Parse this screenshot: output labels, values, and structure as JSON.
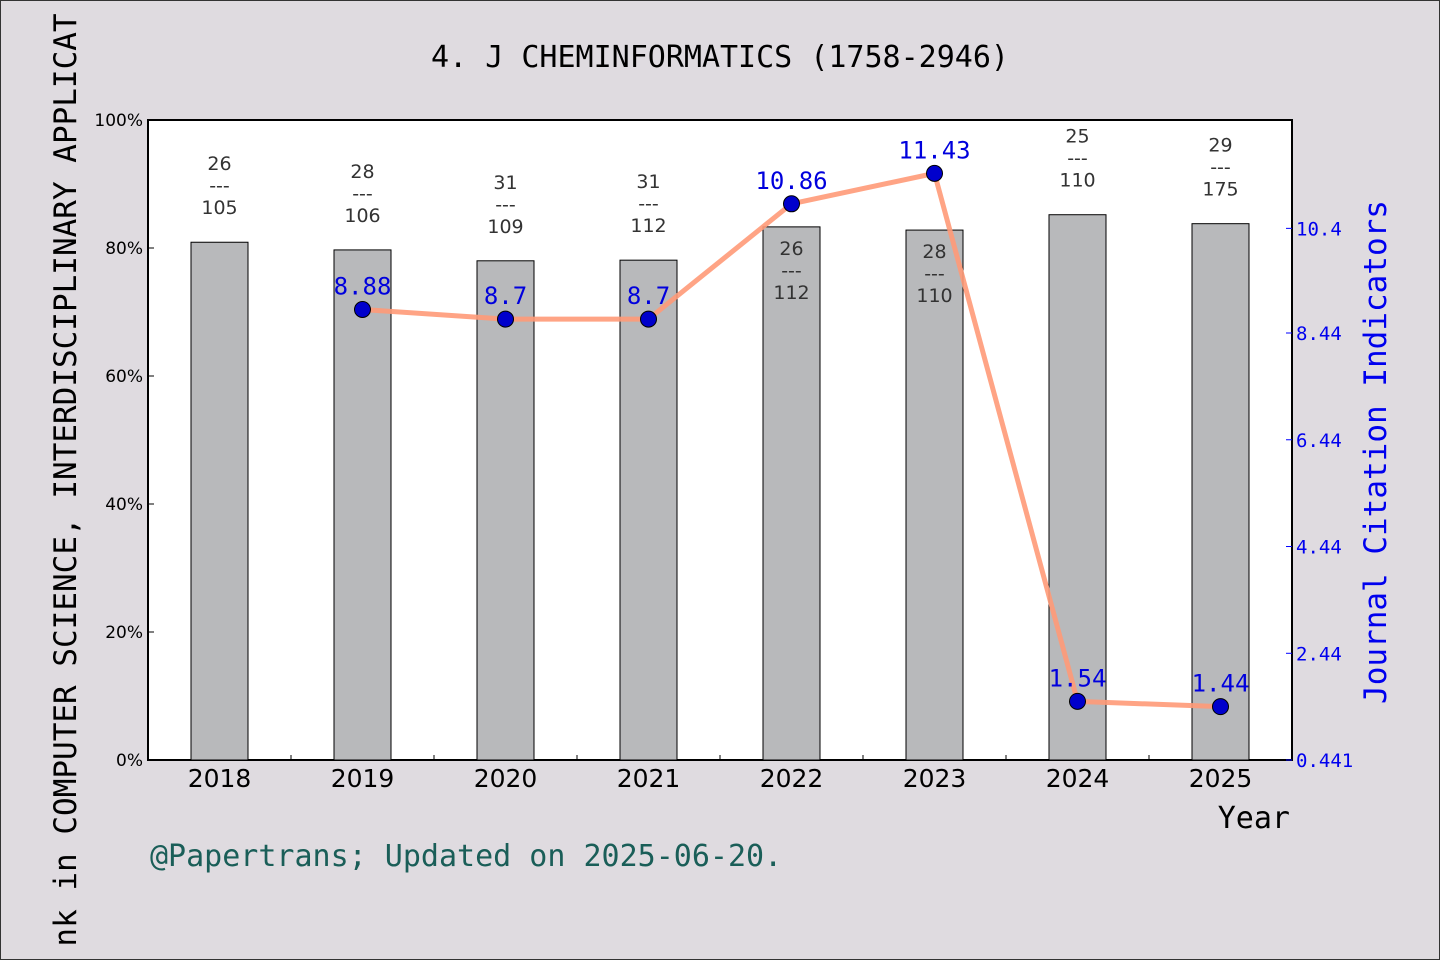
{
  "chart_data": {
    "type": "bar+line",
    "title": "4. J CHEMINFORMATICS (1758-2946)",
    "xlabel": "Year",
    "ylabel_left": "nk in COMPUTER SCIENCE,  INTERDISCIPLINARY APPLICAT",
    "ylabel_right": "Journal Citation Indicators",
    "categories": [
      "2018",
      "2019",
      "2020",
      "2021",
      "2022",
      "2023",
      "2024",
      "2025"
    ],
    "left_axis": {
      "range": [
        0,
        100
      ],
      "ticks": [
        "0%",
        "20%",
        "40%",
        "60%",
        "80%",
        "100%"
      ],
      "tick_values": [
        0,
        20,
        40,
        60,
        80,
        100
      ]
    },
    "right_axis": {
      "range": [
        0.441,
        12.43
      ],
      "ticks": [
        "0.441",
        "2.44",
        "4.44",
        "6.44",
        "8.44",
        "10.4"
      ],
      "tick_values": [
        0.441,
        2.44,
        4.44,
        6.44,
        8.44,
        10.4
      ]
    },
    "bars": {
      "values": [
        80.9,
        79.7,
        78.0,
        78.1,
        83.3,
        82.8,
        85.2,
        83.8
      ],
      "rank": [
        "26",
        "28",
        "31",
        "31",
        "26",
        "28",
        "25",
        "29"
      ],
      "total": [
        "105",
        "106",
        "109",
        "112",
        "112",
        "110",
        "110",
        "175"
      ],
      "separator": "---",
      "color": "#b8b9bb"
    },
    "line": {
      "values": [
        null,
        8.88,
        8.7,
        8.7,
        10.86,
        11.43,
        1.54,
        1.44
      ],
      "labels": [
        "",
        "8.88",
        "8.7",
        "8.7",
        "10.86",
        "11.43",
        "1.54",
        "1.44"
      ],
      "line_color": "#ff9a78",
      "marker_color": "#0000cc",
      "label_color": "#0000dd"
    },
    "grid": false
  },
  "footer": {
    "credit": "@Papertrans; Updated on 2025-06-20."
  }
}
